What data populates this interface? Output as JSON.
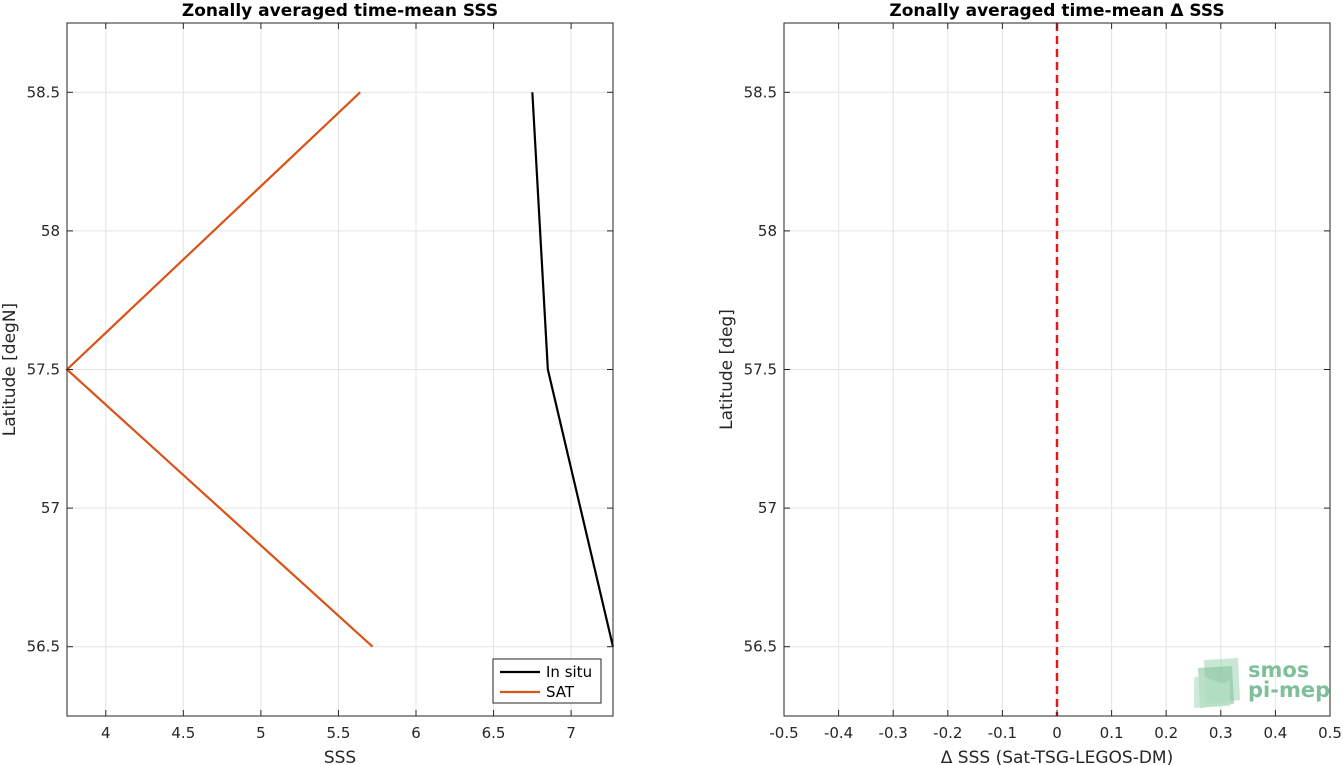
{
  "chart_data": [
    {
      "type": "line",
      "title": "Zonally averaged time-mean SSS",
      "xlabel": "SSS",
      "ylabel": "Latitude [degN]",
      "xlim": [
        3.75,
        7.27
      ],
      "ylim": [
        56.25,
        58.75
      ],
      "xticks": [
        "4",
        "4.5",
        "5",
        "5.5",
        "6",
        "6.5",
        "7"
      ],
      "yticks": [
        "56.5",
        "57",
        "57.5",
        "58",
        "58.5"
      ],
      "grid": true,
      "legend_position": "bottom-right",
      "series": [
        {
          "name": "In situ",
          "color": "#000000",
          "x": [
            6.75,
            6.85,
            7.27
          ],
          "y": [
            58.5,
            57.5,
            56.5
          ]
        },
        {
          "name": "SAT",
          "color": "#d95319",
          "x": [
            5.64,
            3.75,
            5.72
          ],
          "y": [
            58.5,
            57.5,
            56.5
          ]
        }
      ]
    },
    {
      "type": "line",
      "title": "Zonally averaged time-mean Δ SSS",
      "xlabel": "Δ SSS (Sat-TSG-LEGOS-DM)",
      "ylabel": "Latitude [deg]",
      "xlim": [
        -0.5,
        0.5
      ],
      "ylim": [
        56.25,
        58.75
      ],
      "xticks": [
        "-0.5",
        "-0.4",
        "-0.3",
        "-0.2",
        "-0.1",
        "0",
        "0.1",
        "0.2",
        "0.3",
        "0.4",
        "0.5"
      ],
      "yticks": [
        "56.5",
        "57",
        "57.5",
        "58",
        "58.5"
      ],
      "grid": true,
      "reference_line": {
        "x": 0,
        "color": "#e31a1c",
        "style": "dashed"
      }
    }
  ],
  "logo": {
    "line1": "smos",
    "line2": "pi-mep",
    "color": "#7fbf9a"
  }
}
